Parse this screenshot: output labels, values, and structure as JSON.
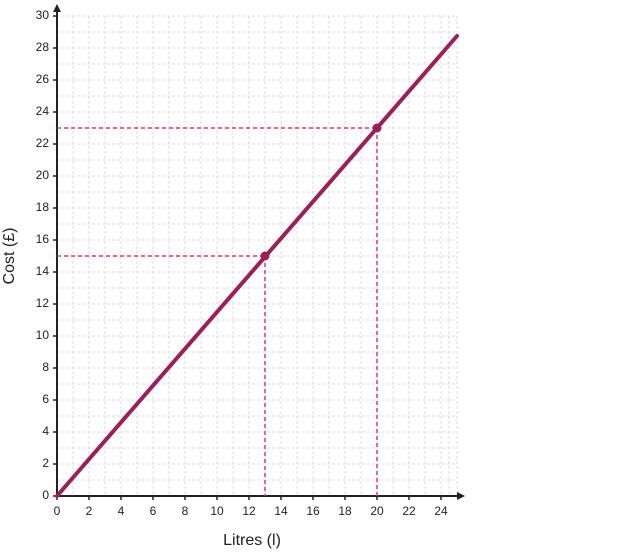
{
  "chart_data": {
    "type": "line",
    "x_label": "Litres (l)",
    "y_label": "Cost (£)",
    "series": [
      {
        "x": [
          0,
          25
        ],
        "values": [
          0,
          28.75
        ],
        "color": "#9b1f5a"
      }
    ],
    "highlight_points": {
      "x": [
        13,
        20
      ],
      "values": [
        15,
        23
      ],
      "color": "#e0357a"
    },
    "xlim": [
      0,
      25
    ],
    "ylim": [
      0,
      30
    ],
    "xticks": [
      0,
      2,
      4,
      6,
      8,
      10,
      12,
      14,
      16,
      18,
      20,
      22,
      24
    ],
    "yticks": [
      0,
      2,
      4,
      6,
      8,
      10,
      12,
      14,
      16,
      18,
      20,
      22,
      24,
      26,
      28,
      30
    ],
    "grid": true
  }
}
